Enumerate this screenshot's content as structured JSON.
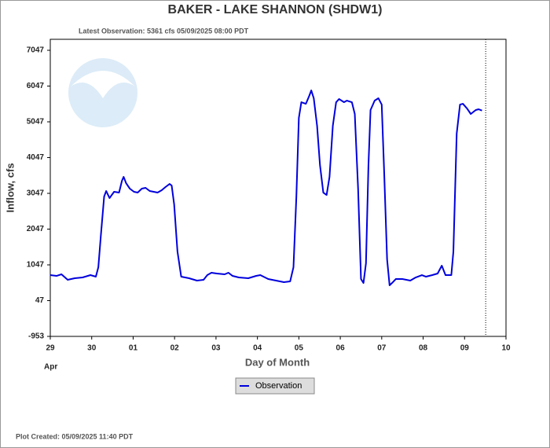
{
  "chart_data": {
    "type": "line",
    "title": "BAKER - LAKE SHANNON  (SHDW1)",
    "subtitle": "Latest Observation: 5361 cfs 05/09/2025 08:00 PDT",
    "footer": "Plot Created: 05/09/2025 11:40 PDT",
    "y_label": "Inflow, cfs",
    "x_label": "Day of Month",
    "x_sublabel": "Apr",
    "xlim": [
      0,
      11
    ],
    "xticks": [
      {
        "value": 0,
        "label": "29"
      },
      {
        "value": 1,
        "label": "30"
      },
      {
        "value": 2,
        "label": "01"
      },
      {
        "value": 3,
        "label": "02"
      },
      {
        "value": 4,
        "label": "03"
      },
      {
        "value": 5,
        "label": "04"
      },
      {
        "value": 6,
        "label": "05"
      },
      {
        "value": 7,
        "label": "06"
      },
      {
        "value": 8,
        "label": "07"
      },
      {
        "value": 9,
        "label": "08"
      },
      {
        "value": 10,
        "label": "09"
      },
      {
        "value": 11,
        "label": "10"
      }
    ],
    "ylim": [
      -953,
      7355
    ],
    "yticks": [
      -953,
      47,
      1047,
      2047,
      3047,
      4047,
      5047,
      6047,
      7047
    ],
    "grid": false,
    "marker_x": 10.51,
    "series": [
      {
        "name": "Observation",
        "color": "#0000dd",
        "x": [
          0,
          0.15,
          0.27,
          0.42,
          0.59,
          0.78,
          0.97,
          1.1,
          1.16,
          1.22,
          1.3,
          1.35,
          1.43,
          1.54,
          1.66,
          1.73,
          1.77,
          1.83,
          1.92,
          2.02,
          2.11,
          2.21,
          2.3,
          2.4,
          2.59,
          2.69,
          2.78,
          2.88,
          2.93,
          2.99,
          3.07,
          3.16,
          3.35,
          3.54,
          3.7,
          3.79,
          3.89,
          4.02,
          4.21,
          4.3,
          4.4,
          4.55,
          4.78,
          4.97,
          5.07,
          5.26,
          5.45,
          5.64,
          5.79,
          5.87,
          5.94,
          6.0,
          6.06,
          6.17,
          6.25,
          6.3,
          6.36,
          6.44,
          6.51,
          6.59,
          6.67,
          6.74,
          6.82,
          6.9,
          6.97,
          7.09,
          7.16,
          7.28,
          7.35,
          7.43,
          7.5,
          7.56,
          7.62,
          7.68,
          7.73,
          7.83,
          7.92,
          8.0,
          8.06,
          8.13,
          8.19,
          8.25,
          8.34,
          8.5,
          8.69,
          8.82,
          8.97,
          9.07,
          9.22,
          9.35,
          9.45,
          9.54,
          9.68,
          9.73,
          9.81,
          9.89,
          9.96,
          10.06,
          10.15,
          10.27,
          10.34,
          10.42
        ],
        "values": [
          761,
          739,
          783,
          629,
          673,
          695,
          761,
          717,
          981,
          1860,
          2959,
          3113,
          2915,
          3091,
          3069,
          3398,
          3508,
          3332,
          3179,
          3091,
          3069,
          3179,
          3201,
          3113,
          3069,
          3135,
          3223,
          3310,
          3266,
          2739,
          1420,
          717,
          673,
          607,
          629,
          761,
          827,
          805,
          783,
          827,
          739,
          695,
          673,
          739,
          761,
          651,
          607,
          563,
          585,
          981,
          2959,
          5157,
          5596,
          5552,
          5772,
          5926,
          5706,
          4937,
          3838,
          3069,
          3003,
          3508,
          4937,
          5596,
          5684,
          5596,
          5640,
          5596,
          5267,
          3179,
          651,
          541,
          1090,
          3838,
          5377,
          5640,
          5706,
          5530,
          3618,
          1200,
          475,
          541,
          651,
          651,
          607,
          695,
          761,
          717,
          761,
          805,
          1025,
          761,
          761,
          1420,
          4717,
          5530,
          5552,
          5420,
          5267,
          5377,
          5399,
          5361
        ]
      }
    ]
  }
}
